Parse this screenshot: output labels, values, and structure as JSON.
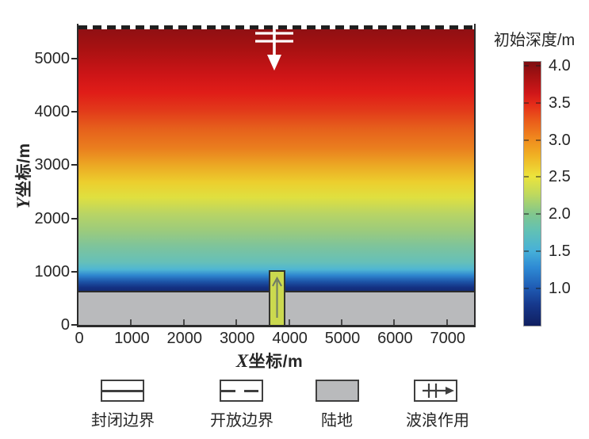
{
  "figure": {
    "y_axis": {
      "var": "Y",
      "rest": "坐标/m",
      "ticks": [
        "5000",
        "4000",
        "3000",
        "2000",
        "1000",
        "0"
      ]
    },
    "x_axis": {
      "var": "X",
      "rest": "坐标/m",
      "ticks": [
        "0",
        "1000",
        "2000",
        "3000",
        "4000",
        "5000",
        "6000",
        "7000"
      ]
    },
    "colorbar": {
      "title": "初始深度/m",
      "ticks": [
        "4.0",
        "3.5",
        "3.0",
        "2.5",
        "2.0",
        "1.5",
        "1.0"
      ]
    },
    "legend": {
      "items": [
        {
          "label": "封闭边界",
          "symbol": "closed-boundary-solid-line"
        },
        {
          "label": "开放边界",
          "symbol": "open-boundary-dashed-line"
        },
        {
          "label": "陆地",
          "symbol": "land-gray-fill"
        },
        {
          "label": "波浪作用",
          "symbol": "wave-action-arrow"
        }
      ]
    },
    "colors": {
      "text": "#262626",
      "plot_border": "#2b2b2b",
      "land_fill": "#b9babc",
      "channel_fill": "#cbd94f",
      "channel_border": "#33352c",
      "channel_arrow": "#6e7a65",
      "wave_symbol": "#ffffff",
      "legend_line": "#3f3f3f",
      "dash_dark": "#1f1f1f"
    },
    "gradients": {
      "plot": [
        "#8a1013 0%",
        "#a91112 8%",
        "#cf1517 17%",
        "#e01d18 22.5%",
        "#e23a1a 28.5%",
        "#e6601c 34.5%",
        "#ea7e1e 41%",
        "#ecaa24 47%",
        "#eccf2e 52.5%",
        "#dfe040 57.5%",
        "#b8d465 63%",
        "#9ccb7c 68.5%",
        "#7fc49a 73.5%",
        "#66c0b8 79%",
        "#4fb6d4 81.5%",
        "#2e85cf 83.5%",
        "#1d55a9 85.5%",
        "#143183 87.5%",
        "#12296f 89%",
        "#12296f 100%"
      ],
      "colorbar": [
        "#7e0d11 0%",
        "#a31112 5%",
        "#d01719 12%",
        "#e52b19 16%",
        "#ea5a1a 22%",
        "#f08c1e 29.5%",
        "#f0b424 36%",
        "#ece43c 43.5%",
        "#c0d95c 50%",
        "#82c78c 57.5%",
        "#62c1b4 64%",
        "#47b1d8 71.5%",
        "#2e8ad4 78%",
        "#1f5cb4 85.5%",
        "#16388c 92%",
        "#101f60 100%"
      ]
    }
  },
  "chart_data": {
    "type": "heatmap",
    "title": "",
    "xlabel": "X坐标/m",
    "ylabel": "Y坐标/m",
    "colorbar_label": "初始深度/m",
    "xlim": [
      0,
      7500
    ],
    "ylim": [
      0,
      5600
    ],
    "x_ticks": [
      0,
      1000,
      2000,
      3000,
      4000,
      5000,
      6000,
      7000
    ],
    "y_ticks": [
      0,
      1000,
      2000,
      3000,
      4000,
      5000
    ],
    "colorbar": {
      "range": [
        0.5,
        4.05
      ],
      "ticks": [
        4.0,
        3.5,
        3.0,
        2.5,
        2.0,
        1.5,
        1.0
      ],
      "colormap": "jet"
    },
    "depth_profile_y_vs_depth": [
      [
        5600,
        4.0
      ],
      [
        4650,
        3.6
      ],
      [
        3650,
        3.2
      ],
      [
        3300,
        3.05
      ],
      [
        2950,
        2.85
      ],
      [
        2650,
        2.6
      ],
      [
        2350,
        2.45
      ],
      [
        2050,
        2.25
      ],
      [
        1800,
        2.1
      ],
      [
        1500,
        1.95
      ],
      [
        1200,
        1.75
      ],
      [
        1050,
        1.55
      ],
      [
        920,
        1.3
      ],
      [
        815,
        1.0
      ],
      [
        710,
        0.8
      ],
      [
        650,
        0.7
      ]
    ],
    "features": {
      "land_strip": {
        "x_range": [
          0,
          7500
        ],
        "y_range": [
          0,
          650
        ],
        "label": "陆地"
      },
      "channel": {
        "x_range": [
          3620,
          3940
        ],
        "y_range": [
          0,
          1010
        ],
        "flow_direction": "up (+Y)"
      },
      "wave_action_symbol": {
        "x": 3720,
        "y_top": 5600,
        "direction": "down (-Y)",
        "label": "波浪作用"
      },
      "open_boundary": {
        "edge": "top (Y=5600)",
        "label": "开放边界"
      },
      "closed_boundaries": {
        "edges": [
          "left",
          "right",
          "bottom"
        ],
        "label": "封闭边界"
      }
    },
    "legend_position": "below plot",
    "grid": false
  }
}
